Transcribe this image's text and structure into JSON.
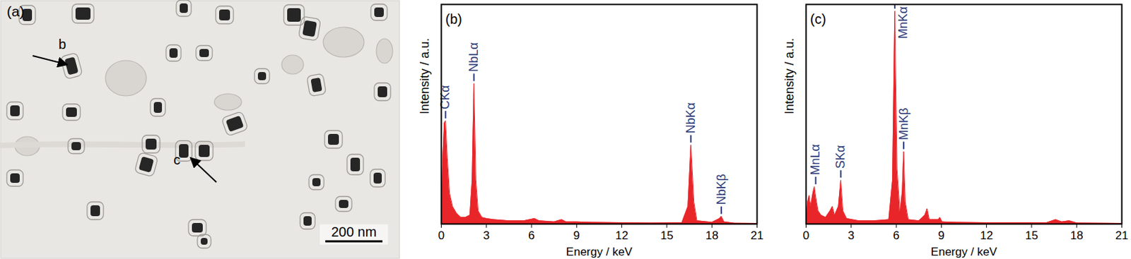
{
  "image_panel": {
    "label": "(a)",
    "markers": [
      "b",
      "c"
    ],
    "scale_bar": "200 nm"
  },
  "chart_data": [
    {
      "type": "area",
      "title": "(b)",
      "xlabel": "Energy / keV",
      "ylabel": "Intensity / a.u.",
      "xlim": [
        0,
        21
      ],
      "xticks": [
        0,
        3,
        6,
        9,
        12,
        15,
        18,
        21
      ],
      "ylim": [
        0,
        100
      ],
      "tick_labels": "x",
      "color": "#e8262a",
      "x": [
        0,
        0.1,
        0.2,
        0.28,
        0.4,
        0.55,
        0.75,
        1.0,
        1.3,
        1.6,
        1.9,
        2.05,
        2.17,
        2.3,
        2.45,
        2.7,
        3.0,
        3.5,
        4.5,
        5.5,
        6.2,
        6.5,
        7.5,
        8.0,
        8.3,
        9,
        10,
        12,
        14,
        16,
        16.4,
        16.6,
        16.8,
        17.0,
        18,
        18.5,
        18.62,
        18.8,
        19.5,
        21
      ],
      "values": [
        0,
        30,
        46,
        47,
        30,
        14,
        8,
        5,
        3,
        3,
        4,
        20,
        64,
        20,
        6,
        3,
        2.5,
        2,
        1.5,
        1.5,
        2.5,
        1.5,
        1,
        2,
        1,
        1,
        0.8,
        0.6,
        0.5,
        0.6,
        8,
        36,
        10,
        1.5,
        0.8,
        2.5,
        3.5,
        1,
        0.4,
        0.3
      ],
      "annotations": [
        {
          "text": "CKα",
          "x": 0.28
        },
        {
          "text": "NbLα",
          "x": 2.17
        },
        {
          "text": "NbKα",
          "x": 16.6
        },
        {
          "text": "NbKβ",
          "x": 18.62
        }
      ]
    },
    {
      "type": "area",
      "title": "(c)",
      "xlabel": "Energy / keV",
      "ylabel": "Intensity / a.u.",
      "xlim": [
        0,
        21
      ],
      "xticks": [
        0,
        3,
        6,
        9,
        12,
        15,
        18,
        21
      ],
      "ylim": [
        0,
        100
      ],
      "tick_labels": "x",
      "color": "#e8262a",
      "x": [
        0,
        0.1,
        0.2,
        0.3,
        0.45,
        0.55,
        0.65,
        0.8,
        1.0,
        1.3,
        1.6,
        1.75,
        1.9,
        2.15,
        2.31,
        2.45,
        2.7,
        3.5,
        4.5,
        5.5,
        5.75,
        5.9,
        6.05,
        6.25,
        6.4,
        6.49,
        6.6,
        6.8,
        7.5,
        7.9,
        8.05,
        8.2,
        8.8,
        8.9,
        9.05,
        10,
        12,
        16,
        16.6,
        17.0,
        17.5,
        18,
        21
      ],
      "values": [
        0,
        10,
        13,
        8,
        14,
        17,
        12,
        6,
        4,
        3,
        6,
        8,
        4,
        8,
        20,
        6,
        2.5,
        1.5,
        1.5,
        2,
        20,
        97,
        25,
        5,
        15,
        33,
        10,
        2,
        1.5,
        4,
        7,
        2,
        2,
        3,
        1,
        0.8,
        0.6,
        0.6,
        2,
        1,
        1.5,
        0.5,
        0.3
      ],
      "annotations": [
        {
          "text": "MnLα",
          "x": 0.64
        },
        {
          "text": "SKα",
          "x": 2.31
        },
        {
          "text": "MnKα",
          "x": 5.9
        },
        {
          "text": "MnKβ",
          "x": 6.49
        }
      ]
    }
  ]
}
